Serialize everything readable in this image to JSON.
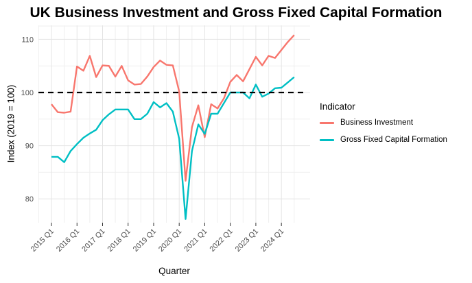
{
  "title": "UK Business Investment and Gross Fixed Capital Formation",
  "chart_data": {
    "type": "line",
    "title": "UK Business Investment and Gross Fixed Capital Formation",
    "xlabel": "Quarter",
    "ylabel": "Index (2019 = 100)",
    "legend_title": "Indicator",
    "legend_position": "right",
    "grid": true,
    "reference_line": {
      "y": 100,
      "style": "dashed",
      "color": "#000000"
    },
    "y_ticks": [
      80,
      90,
      100,
      110
    ],
    "y_minor_ticks": [
      85,
      95,
      105,
      112.5
    ],
    "ylim": [
      74.5,
      112.5
    ],
    "x_tick_labels": [
      "2015 Q1",
      "2016 Q1",
      "2017 Q1",
      "2018 Q1",
      "2019 Q1",
      "2020 Q1",
      "2021 Q1",
      "2022 Q1",
      "2023 Q1",
      "2024 Q1"
    ],
    "x": [
      "2015 Q1",
      "2015 Q2",
      "2015 Q3",
      "2015 Q4",
      "2016 Q1",
      "2016 Q2",
      "2016 Q3",
      "2016 Q4",
      "2017 Q1",
      "2017 Q2",
      "2017 Q3",
      "2017 Q4",
      "2018 Q1",
      "2018 Q2",
      "2018 Q3",
      "2018 Q4",
      "2019 Q1",
      "2019 Q2",
      "2019 Q3",
      "2019 Q4",
      "2020 Q1",
      "2020 Q2",
      "2020 Q3",
      "2020 Q4",
      "2021 Q1",
      "2021 Q2",
      "2021 Q3",
      "2021 Q4",
      "2022 Q1",
      "2022 Q2",
      "2022 Q3",
      "2022 Q4",
      "2023 Q1",
      "2023 Q2",
      "2023 Q3",
      "2023 Q4",
      "2024 Q1",
      "2024 Q2",
      "2024 Q3"
    ],
    "series": [
      {
        "name": "Business Investment",
        "color": "#F8766D",
        "values": [
          97.8,
          96.3,
          96.2,
          96.4,
          104.9,
          104.1,
          106.9,
          102.9,
          105.1,
          105.0,
          103.0,
          105.0,
          102.3,
          101.5,
          101.6,
          103.0,
          104.8,
          106.0,
          105.2,
          105.1,
          100.2,
          83.4,
          93.5,
          97.6,
          91.6,
          97.8,
          97.0,
          98.9,
          102.0,
          103.3,
          102.1,
          104.4,
          106.7,
          105.1,
          106.9,
          106.5,
          108.0,
          109.5,
          110.8
        ]
      },
      {
        "name": "Gross Fixed Capital Formation",
        "color": "#00BFC4",
        "values": [
          87.9,
          87.9,
          86.9,
          89.0,
          90.3,
          91.5,
          92.3,
          93.0,
          94.8,
          95.9,
          96.8,
          96.8,
          96.8,
          95.0,
          95.0,
          96.0,
          98.2,
          97.2,
          98.0,
          96.4,
          91.3,
          76.2,
          89.0,
          94.0,
          92.2,
          96.0,
          96.0,
          98.0,
          100.0,
          100.0,
          100.0,
          98.9,
          101.5,
          99.2,
          99.8,
          100.8,
          100.9,
          101.9,
          102.9
        ]
      }
    ],
    "colors": {
      "grid_major": "#E4E4E4",
      "grid_minor": "#EFEFEF",
      "axis_text": "#4d4d4d",
      "tick_mark": "#333333"
    }
  }
}
